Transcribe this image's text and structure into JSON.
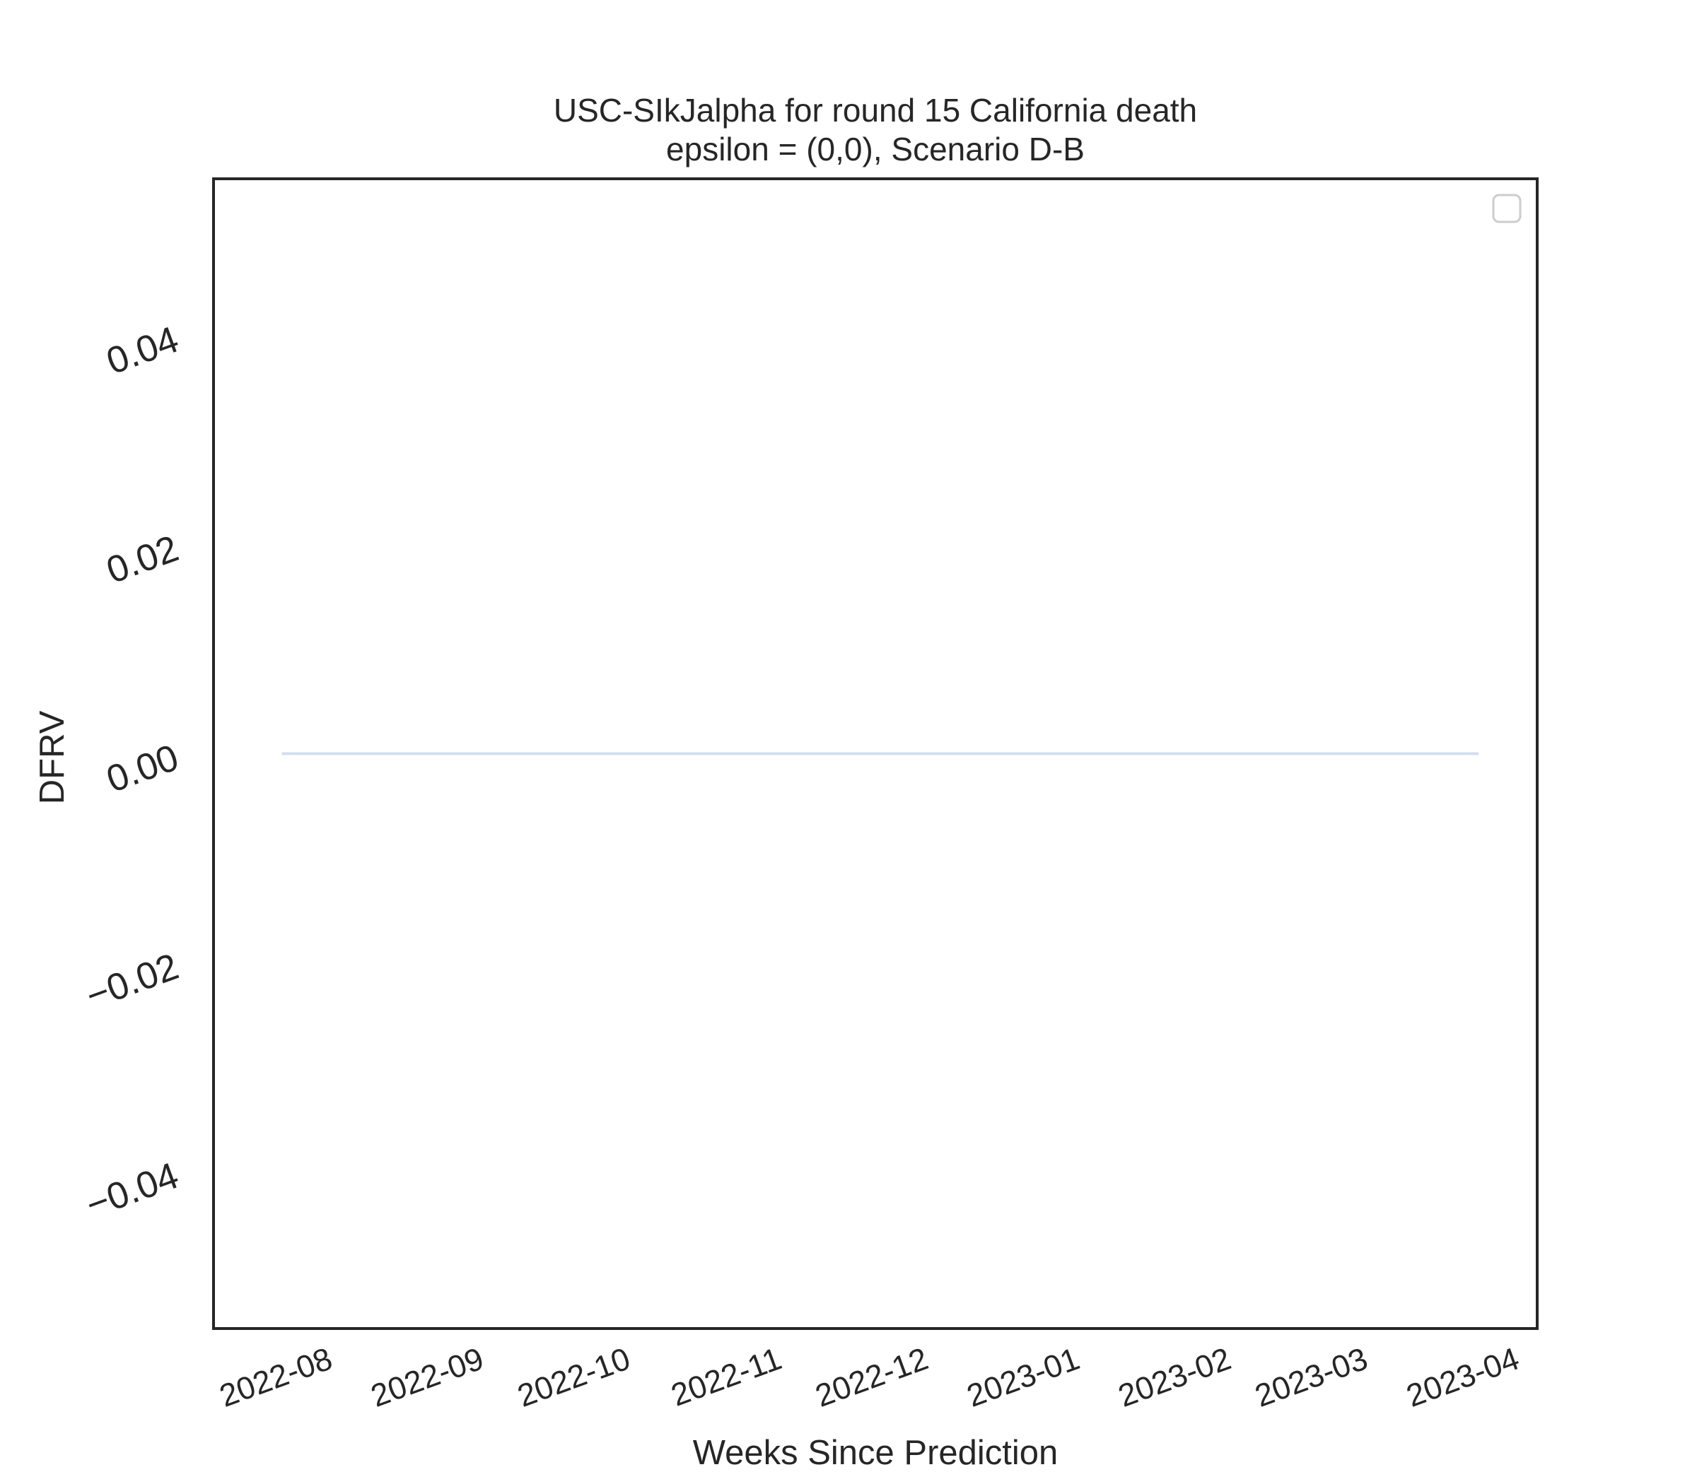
{
  "chart_data": {
    "type": "line",
    "title_lines": [
      "USC-SIkJalpha for round 15 California death",
      "epsilon = (0,0), Scenario D-B"
    ],
    "xlabel": "Weeks Since Prediction",
    "ylabel": "DFRV",
    "x_tick_labels": [
      "2022-08",
      "2022-09",
      "2022-10",
      "2022-11",
      "2022-12",
      "2023-01",
      "2023-02",
      "2023-03",
      "2023-04"
    ],
    "x_ticks": [
      "2022-08-01",
      "2022-09-01",
      "2022-10-01",
      "2022-11-01",
      "2022-12-01",
      "2023-01-01",
      "2023-02-01",
      "2023-03-01",
      "2023-04-01"
    ],
    "y_tick_labels": [
      "0.04",
      "0.02",
      "0.00",
      "−0.02",
      "−0.04"
    ],
    "y_ticks": [
      0.04,
      0.02,
      0.0,
      -0.02,
      -0.04
    ],
    "xlim": [
      "2022-07-09",
      "2023-04-06"
    ],
    "ylim": [
      -0.055,
      0.055
    ],
    "grid": false,
    "legend": {
      "placement": "top-right",
      "entries": []
    },
    "series": [
      {
        "color": "#d4ddee",
        "x": [
          "2022-07-23",
          "2022-07-30",
          "2022-08-06",
          "2022-08-13",
          "2022-08-20",
          "2022-08-27",
          "2022-09-03",
          "2022-09-10",
          "2022-09-17",
          "2022-09-24",
          "2022-10-01",
          "2022-10-08",
          "2022-10-15",
          "2022-10-22",
          "2022-10-29",
          "2022-11-05",
          "2022-11-12",
          "2022-11-19",
          "2022-11-26",
          "2022-12-03",
          "2022-12-10",
          "2022-12-17",
          "2022-12-24",
          "2022-12-31",
          "2023-01-07",
          "2023-01-14",
          "2023-01-21",
          "2023-01-28",
          "2023-02-04",
          "2023-02-11",
          "2023-02-18",
          "2023-02-25",
          "2023-03-04",
          "2023-03-11",
          "2023-03-18",
          "2023-03-25"
        ],
        "y": [
          0,
          0,
          0,
          0,
          0,
          0,
          0,
          0,
          0,
          0,
          0,
          0,
          0,
          0,
          0,
          0,
          0,
          0,
          0,
          0,
          0,
          0,
          0,
          0,
          0,
          0,
          0,
          0,
          0,
          0,
          0,
          0,
          0,
          0,
          0,
          0
        ]
      }
    ]
  }
}
